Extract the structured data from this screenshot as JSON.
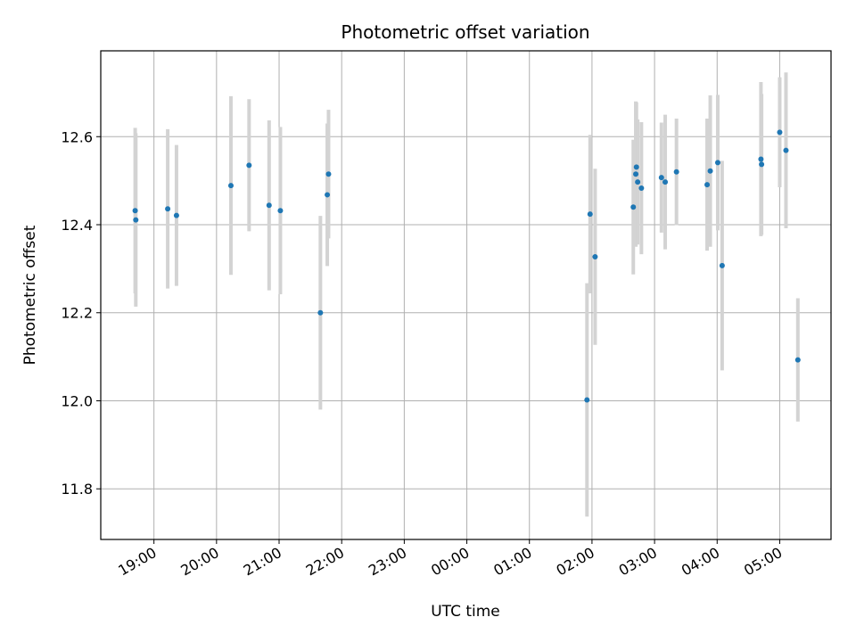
{
  "chart_data": {
    "type": "scatter",
    "title": "Photometric offset variation",
    "xlabel": "UTC time",
    "ylabel": "Photometric offset",
    "x_axis_type": "time",
    "x_ticks": [
      "19:00",
      "20:00",
      "21:00",
      "22:00",
      "23:00",
      "00:00",
      "01:00",
      "02:00",
      "03:00",
      "04:00",
      "05:00"
    ],
    "x_ticks_hours": [
      19,
      20,
      21,
      22,
      23,
      24,
      25,
      26,
      27,
      28,
      29
    ],
    "xlim_hours": [
      18.15,
      29.82
    ],
    "ylim": [
      11.685,
      12.795
    ],
    "y_ticks": [
      11.8,
      12.0,
      12.2,
      12.4,
      12.6
    ],
    "grid": true,
    "marker_color": "#1f77b4",
    "errorbar_color": "#d3d3d3",
    "points": [
      {
        "t": 18.7,
        "y": 12.432,
        "err": 0.188
      },
      {
        "t": 18.71,
        "y": 12.411,
        "err": 0.197
      },
      {
        "t": 19.22,
        "y": 12.436,
        "err": 0.181
      },
      {
        "t": 19.36,
        "y": 12.421,
        "err": 0.16
      },
      {
        "t": 20.23,
        "y": 12.489,
        "err": 0.203
      },
      {
        "t": 20.52,
        "y": 12.535,
        "err": 0.15
      },
      {
        "t": 20.84,
        "y": 12.444,
        "err": 0.193
      },
      {
        "t": 21.02,
        "y": 12.432,
        "err": 0.19
      },
      {
        "t": 21.66,
        "y": 12.2,
        "err": 0.22
      },
      {
        "t": 21.77,
        "y": 12.468,
        "err": 0.162
      },
      {
        "t": 21.79,
        "y": 12.515,
        "err": 0.146
      },
      {
        "t": 25.92,
        "y": 12.002,
        "err": 0.265
      },
      {
        "t": 25.97,
        "y": 12.424,
        "err": 0.18
      },
      {
        "t": 26.05,
        "y": 12.327,
        "err": 0.2
      },
      {
        "t": 26.66,
        "y": 12.44,
        "err": 0.153
      },
      {
        "t": 26.7,
        "y": 12.515,
        "err": 0.165
      },
      {
        "t": 26.71,
        "y": 12.531,
        "err": 0.147
      },
      {
        "t": 26.73,
        "y": 12.497,
        "err": 0.142
      },
      {
        "t": 26.79,
        "y": 12.483,
        "err": 0.15
      },
      {
        "t": 27.11,
        "y": 12.507,
        "err": 0.125
      },
      {
        "t": 27.17,
        "y": 12.497,
        "err": 0.153
      },
      {
        "t": 27.35,
        "y": 12.52,
        "err": 0.121
      },
      {
        "t": 27.84,
        "y": 12.491,
        "err": 0.15
      },
      {
        "t": 27.89,
        "y": 12.522,
        "err": 0.172
      },
      {
        "t": 28.01,
        "y": 12.541,
        "err": 0.154
      },
      {
        "t": 28.08,
        "y": 12.307,
        "err": 0.238
      },
      {
        "t": 28.7,
        "y": 12.549,
        "err": 0.175
      },
      {
        "t": 28.71,
        "y": 12.537,
        "err": 0.16
      },
      {
        "t": 29.0,
        "y": 12.61,
        "err": 0.125
      },
      {
        "t": 29.1,
        "y": 12.569,
        "err": 0.177
      },
      {
        "t": 29.29,
        "y": 12.093,
        "err": 0.14
      }
    ]
  }
}
